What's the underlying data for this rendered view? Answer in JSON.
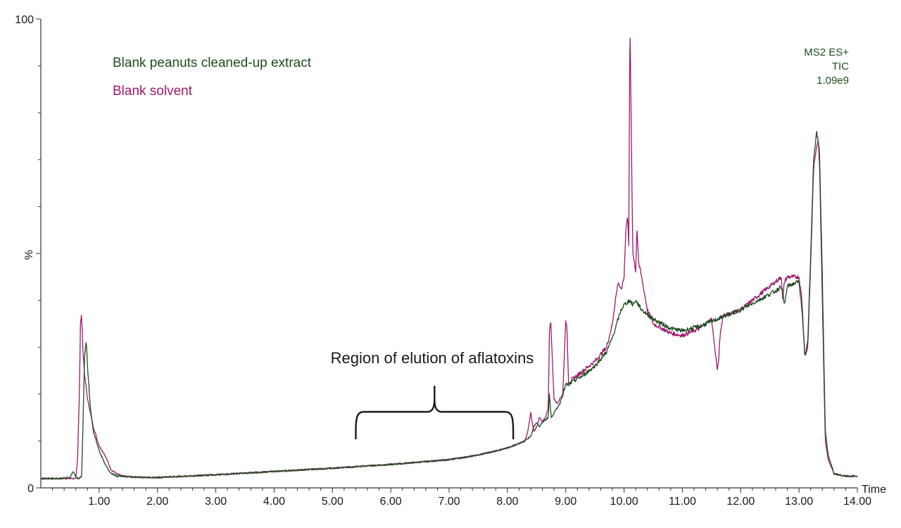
{
  "chart_data": {
    "type": "line",
    "title": "",
    "xlabel": "Time",
    "ylabel": "%",
    "xlim": [
      0,
      14.0
    ],
    "ylim": [
      0,
      100
    ],
    "x_ticks": [
      "1.00",
      "2.00",
      "3.00",
      "4.00",
      "5.00",
      "6.00",
      "7.00",
      "8.00",
      "9.00",
      "10.00",
      "11.00",
      "12.00",
      "13.00",
      "14.00"
    ],
    "y_tick_labels": [
      "0",
      "%",
      "100"
    ],
    "grid": false,
    "legend_position": "top-left",
    "info_box": {
      "line1": "MS2 ES+",
      "line2": "TIC",
      "line3": "1.09e9"
    },
    "annotation": {
      "text": "Region of elution of aflatoxins",
      "x_start": 5.4,
      "x_end": 8.1
    },
    "series": [
      {
        "name": "Blank peanuts cleaned-up extract",
        "color": "#1f4d1f",
        "x": [
          0.0,
          0.3,
          0.5,
          0.55,
          0.6,
          0.63,
          0.66,
          0.7,
          0.72,
          0.75,
          0.78,
          0.8,
          0.85,
          0.9,
          1.0,
          1.1,
          1.2,
          1.3,
          1.4,
          1.6,
          2.0,
          3.0,
          4.0,
          5.0,
          6.0,
          7.0,
          7.5,
          8.0,
          8.3,
          8.4,
          8.45,
          8.5,
          8.55,
          8.6,
          8.65,
          8.7,
          8.72,
          8.75,
          8.8,
          8.85,
          8.9,
          8.95,
          9.0,
          9.05,
          9.1,
          9.3,
          9.5,
          9.7,
          9.8,
          9.9,
          9.95,
          10.0,
          10.05,
          10.1,
          10.15,
          10.2,
          10.25,
          10.3,
          10.5,
          10.8,
          11.0,
          11.3,
          11.6,
          11.8,
          12.0,
          12.3,
          12.6,
          12.7,
          12.75,
          12.8,
          13.0,
          13.05,
          13.1,
          13.15,
          13.2,
          13.25,
          13.3,
          13.35,
          13.4,
          13.45,
          13.5,
          13.6,
          13.8,
          14.0
        ],
        "y": [
          2.0,
          2.0,
          2.2,
          3.5,
          2.5,
          2.0,
          2.0,
          2.5,
          12.0,
          28.0,
          31.0,
          26.0,
          17.0,
          12.0,
          8.0,
          5.0,
          3.2,
          2.5,
          2.5,
          2.3,
          2.2,
          2.8,
          3.5,
          4.2,
          5.0,
          6.0,
          7.0,
          8.5,
          10.0,
          11.0,
          13.0,
          14.0,
          13.0,
          14.0,
          14.5,
          15.0,
          20.0,
          15.0,
          16.0,
          17.0,
          18.0,
          20.0,
          22.0,
          22.0,
          22.5,
          24.0,
          26.0,
          29.0,
          32.0,
          36.0,
          38.0,
          39.0,
          39.5,
          40.0,
          39.0,
          40.0,
          39.0,
          38.0,
          36.0,
          34.0,
          33.5,
          34.5,
          36.0,
          37.0,
          38.0,
          40.0,
          42.0,
          43.0,
          39.0,
          43.0,
          44.0,
          38.0,
          28.0,
          31.0,
          50.0,
          70.0,
          76.0,
          72.0,
          45.0,
          12.0,
          7.0,
          3.0,
          2.5,
          2.5
        ]
      },
      {
        "name": "Blank solvent",
        "color": "#9c1a6a",
        "x": [
          0.0,
          0.3,
          0.5,
          0.6,
          0.63,
          0.66,
          0.68,
          0.7,
          0.72,
          0.75,
          0.8,
          0.9,
          1.0,
          1.1,
          1.2,
          1.3,
          1.4,
          1.6,
          2.0,
          3.0,
          4.0,
          5.0,
          6.0,
          7.0,
          7.5,
          8.0,
          8.3,
          8.35,
          8.4,
          8.45,
          8.5,
          8.55,
          8.6,
          8.65,
          8.7,
          8.72,
          8.74,
          8.8,
          8.85,
          8.9,
          8.95,
          9.0,
          9.02,
          9.05,
          9.1,
          9.3,
          9.5,
          9.7,
          9.8,
          9.85,
          9.9,
          9.95,
          10.0,
          10.03,
          10.06,
          10.08,
          10.1,
          10.13,
          10.15,
          10.18,
          10.2,
          10.22,
          10.25,
          10.3,
          10.4,
          10.5,
          10.8,
          11.0,
          11.3,
          11.5,
          11.6,
          11.62,
          11.65,
          11.7,
          11.8,
          12.0,
          12.3,
          12.6,
          12.7,
          12.72,
          12.75,
          12.8,
          13.0,
          13.05,
          13.1,
          13.15,
          13.2,
          13.25,
          13.3,
          13.33,
          13.35,
          13.4,
          13.45,
          13.5,
          13.6,
          13.8,
          14.0
        ],
        "y": [
          2.0,
          2.0,
          2.0,
          2.0,
          6.0,
          20.0,
          35.0,
          37.0,
          30.0,
          24.0,
          19.0,
          13.0,
          9.0,
          7.0,
          4.0,
          3.0,
          2.5,
          2.3,
          2.2,
          2.8,
          3.5,
          4.2,
          5.0,
          6.0,
          7.0,
          8.5,
          10.0,
          12.0,
          16.0,
          12.0,
          13.0,
          15.0,
          14.0,
          15.0,
          17.0,
          33.0,
          36.0,
          19.0,
          18.0,
          19.0,
          20.0,
          36.0,
          34.0,
          22.0,
          23.0,
          25.0,
          27.0,
          30.0,
          35.0,
          40.0,
          44.0,
          42.0,
          45.0,
          55.0,
          58.0,
          52.0,
          100.0,
          70.0,
          50.0,
          48.0,
          46.0,
          56.0,
          48.0,
          45.0,
          38.0,
          35.0,
          33.0,
          32.5,
          34.0,
          36.0,
          25.0,
          27.0,
          33.0,
          37.0,
          37.0,
          38.0,
          41.0,
          44.0,
          45.0,
          40.0,
          44.0,
          45.0,
          45.0,
          40.0,
          28.0,
          30.0,
          48.0,
          68.0,
          73.0,
          74.0,
          70.0,
          40.0,
          10.0,
          6.0,
          3.0,
          2.5,
          2.5
        ]
      }
    ]
  }
}
